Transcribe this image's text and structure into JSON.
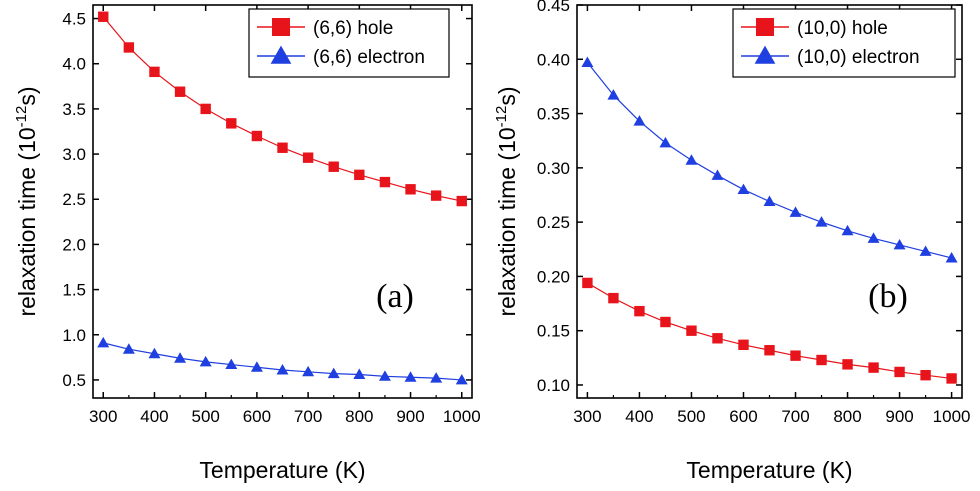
{
  "chart_data": [
    {
      "type": "line",
      "panel_label": "(a)",
      "xlabel": "Temperature (K)",
      "ylabel": "relaxation time (10",
      "ylabel_exp": "-12",
      "ylabel_tail": "s)",
      "xlim": [
        280,
        1020
      ],
      "ylim": [
        0.3,
        4.65
      ],
      "xticks": [
        "300",
        "400",
        "500",
        "600",
        "700",
        "800",
        "900",
        "1000"
      ],
      "yticks": [
        "0.5",
        "1.0",
        "1.5",
        "2.0",
        "2.5",
        "3.0",
        "3.5",
        "4.0",
        "4.5"
      ],
      "grid": false,
      "legend_position": "top-right",
      "x": [
        300,
        350,
        400,
        450,
        500,
        550,
        600,
        650,
        700,
        750,
        800,
        850,
        900,
        950,
        1000
      ],
      "series": [
        {
          "name": "(6,6) hole",
          "marker": "square",
          "color": "#e8141b",
          "values": [
            4.52,
            4.18,
            3.91,
            3.69,
            3.5,
            3.34,
            3.2,
            3.07,
            2.96,
            2.86,
            2.77,
            2.69,
            2.61,
            2.54,
            2.48
          ]
        },
        {
          "name": "(6,6) electron",
          "marker": "triangle",
          "color": "#1f3fe0",
          "values": [
            0.91,
            0.84,
            0.79,
            0.74,
            0.7,
            0.67,
            0.64,
            0.61,
            0.59,
            0.57,
            0.56,
            0.54,
            0.53,
            0.52,
            0.5
          ]
        }
      ]
    },
    {
      "type": "line",
      "panel_label": "(b)",
      "xlabel": "Temperature (K)",
      "ylabel": "relaxation time (10",
      "ylabel_exp": "-12",
      "ylabel_tail": "s)",
      "xlim": [
        280,
        1020
      ],
      "ylim": [
        0.088,
        0.45
      ],
      "xticks": [
        "300",
        "400",
        "500",
        "600",
        "700",
        "800",
        "900",
        "1000"
      ],
      "yticks": [
        "0.10",
        "0.15",
        "0.20",
        "0.25",
        "0.30",
        "0.35",
        "0.40",
        "0.45"
      ],
      "grid": false,
      "legend_position": "top-right",
      "x": [
        300,
        350,
        400,
        450,
        500,
        550,
        600,
        650,
        700,
        750,
        800,
        850,
        900,
        950,
        1000
      ],
      "series": [
        {
          "name": "(10,0) hole",
          "marker": "square",
          "color": "#e8141b",
          "values": [
            0.194,
            0.18,
            0.168,
            0.158,
            0.15,
            0.143,
            0.137,
            0.132,
            0.127,
            0.123,
            0.119,
            0.116,
            0.112,
            0.109,
            0.106
          ]
        },
        {
          "name": "(10,0) electron",
          "marker": "triangle",
          "color": "#1f3fe0",
          "values": [
            0.397,
            0.367,
            0.343,
            0.323,
            0.307,
            0.293,
            0.28,
            0.269,
            0.259,
            0.25,
            0.242,
            0.235,
            0.229,
            0.223,
            0.217
          ]
        }
      ]
    }
  ]
}
